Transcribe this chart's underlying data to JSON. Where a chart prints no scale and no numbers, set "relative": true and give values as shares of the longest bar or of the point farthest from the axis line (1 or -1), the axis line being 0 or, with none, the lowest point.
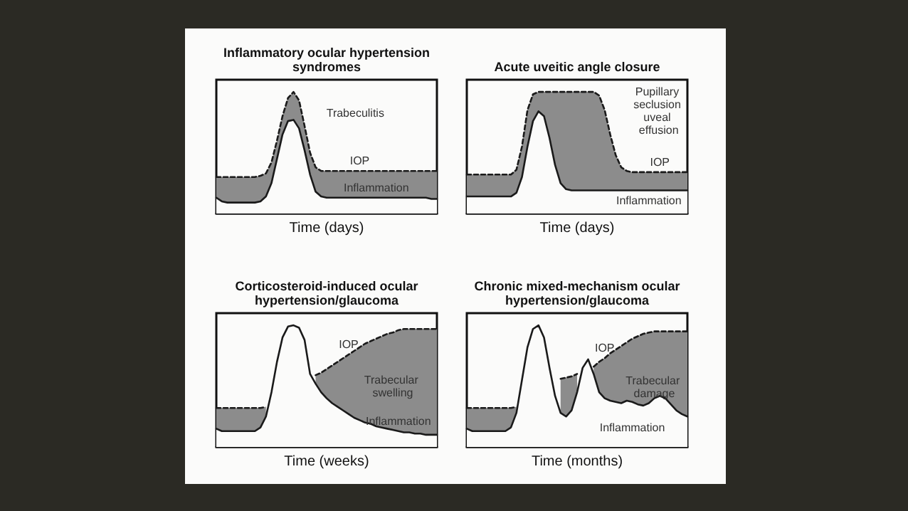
{
  "chart_data": [
    {
      "type": "line",
      "title": "Inflammatory ocular hypertension syndromes",
      "xlabel": "Time (days)",
      "relative": true,
      "legend": false,
      "grid": false,
      "marker": "none",
      "annotations": [
        "Trabeculitis"
      ],
      "categories": [
        null,
        null,
        null,
        null,
        null,
        null,
        null,
        null,
        null,
        null,
        null,
        null,
        null,
        null,
        null,
        null,
        null,
        null,
        null,
        null,
        null,
        null,
        null,
        null,
        null,
        null,
        null,
        null,
        null,
        null,
        null,
        null,
        null,
        null,
        null,
        null,
        null,
        null,
        null,
        null,
        null
      ],
      "series": [
        {
          "name": "IOP",
          "type": "area",
          "color": "#8c8c8c",
          "line_style": "dashed",
          "values": [
            0.3,
            0.3,
            0.3,
            0.3,
            0.3,
            0.3,
            0.3,
            0.3,
            0.31,
            0.33,
            0.42,
            0.6,
            0.8,
            0.95,
            1.0,
            0.93,
            0.72,
            0.5,
            0.38,
            0.35,
            0.35,
            0.35,
            0.35,
            0.35,
            0.35,
            0.35,
            0.35,
            0.35,
            0.35,
            0.35,
            0.35,
            0.35,
            0.35,
            0.35,
            0.35,
            0.35,
            0.35,
            0.35,
            0.35,
            0.35,
            0.35
          ]
        },
        {
          "name": "Inflammation",
          "type": "area",
          "color": "#fbfbfa",
          "line_style": "solid",
          "values": [
            0.13,
            0.1,
            0.09,
            0.09,
            0.09,
            0.09,
            0.09,
            0.09,
            0.1,
            0.14,
            0.25,
            0.45,
            0.65,
            0.76,
            0.77,
            0.7,
            0.52,
            0.32,
            0.18,
            0.14,
            0.13,
            0.13,
            0.13,
            0.13,
            0.13,
            0.13,
            0.13,
            0.13,
            0.13,
            0.13,
            0.13,
            0.13,
            0.13,
            0.13,
            0.13,
            0.13,
            0.13,
            0.13,
            0.13,
            0.12,
            0.12
          ]
        }
      ]
    },
    {
      "type": "line",
      "title": "Acute uveitic angle closure",
      "xlabel": "Time (days)",
      "relative": true,
      "legend": false,
      "grid": false,
      "marker": "none",
      "annotations": [
        "Pupillary seclusion uveal effusion"
      ],
      "categories": [
        null,
        null,
        null,
        null,
        null,
        null,
        null,
        null,
        null,
        null,
        null,
        null,
        null,
        null,
        null,
        null,
        null,
        null,
        null,
        null,
        null,
        null,
        null,
        null,
        null,
        null,
        null,
        null,
        null,
        null,
        null,
        null,
        null,
        null,
        null,
        null,
        null,
        null,
        null,
        null,
        null
      ],
      "series": [
        {
          "name": "IOP",
          "type": "area",
          "color": "#8c8c8c",
          "line_style": "dashed",
          "values": [
            0.32,
            0.32,
            0.32,
            0.32,
            0.32,
            0.32,
            0.32,
            0.32,
            0.32,
            0.36,
            0.55,
            0.85,
            0.98,
            1.0,
            1.0,
            1.0,
            1.0,
            1.0,
            1.0,
            1.0,
            1.0,
            1.0,
            1.0,
            1.0,
            0.97,
            0.85,
            0.65,
            0.48,
            0.38,
            0.35,
            0.34,
            0.34,
            0.34,
            0.34,
            0.34,
            0.34,
            0.34,
            0.34,
            0.34,
            0.34,
            0.34
          ]
        },
        {
          "name": "Inflammation",
          "type": "area",
          "color": "#fbfbfa",
          "line_style": "solid",
          "values": [
            0.14,
            0.14,
            0.14,
            0.14,
            0.14,
            0.14,
            0.14,
            0.14,
            0.14,
            0.17,
            0.3,
            0.55,
            0.76,
            0.84,
            0.8,
            0.62,
            0.4,
            0.25,
            0.2,
            0.19,
            0.19,
            0.19,
            0.19,
            0.19,
            0.19,
            0.19,
            0.19,
            0.19,
            0.19,
            0.19,
            0.19,
            0.19,
            0.19,
            0.19,
            0.19,
            0.19,
            0.19,
            0.19,
            0.19,
            0.19,
            0.19
          ]
        }
      ]
    },
    {
      "type": "line",
      "title": "Corticosteroid-induced ocular hypertension/glaucoma",
      "xlabel": "Time (weeks)",
      "relative": true,
      "legend": false,
      "grid": false,
      "marker": "none",
      "annotations": [
        "Trabecular swelling"
      ],
      "categories": [
        null,
        null,
        null,
        null,
        null,
        null,
        null,
        null,
        null,
        null,
        null,
        null,
        null,
        null,
        null,
        null,
        null,
        null,
        null,
        null,
        null,
        null,
        null,
        null,
        null,
        null,
        null,
        null,
        null,
        null,
        null,
        null,
        null,
        null,
        null,
        null,
        null,
        null,
        null,
        null,
        null
      ],
      "series": [
        {
          "name": "IOP",
          "type": "area",
          "color": "#8c8c8c",
          "line_style": "dashed",
          "values": [
            0.32,
            0.32,
            0.32,
            0.32,
            0.32,
            0.32,
            0.32,
            0.32,
            0.32,
            0.33,
            null,
            null,
            null,
            null,
            null,
            null,
            null,
            null,
            0.59,
            0.61,
            0.64,
            0.67,
            0.7,
            0.73,
            0.76,
            0.79,
            0.82,
            0.85,
            0.87,
            0.89,
            0.91,
            0.93,
            0.94,
            0.96,
            0.97,
            0.97,
            0.97,
            0.97,
            0.97,
            0.97,
            0.97
          ]
        },
        {
          "name": "Inflammation",
          "type": "area",
          "color": "#fbfbfa",
          "line_style": "solid",
          "values": [
            0.15,
            0.13,
            0.13,
            0.13,
            0.13,
            0.13,
            0.13,
            0.13,
            0.16,
            0.25,
            0.45,
            0.7,
            0.9,
            0.99,
            1.0,
            0.98,
            0.88,
            0.6,
            0.52,
            0.45,
            0.4,
            0.36,
            0.33,
            0.3,
            0.27,
            0.24,
            0.22,
            0.2,
            0.19,
            0.17,
            0.16,
            0.15,
            0.14,
            0.13,
            0.12,
            0.12,
            0.11,
            0.11,
            0.1,
            0.1,
            0.1
          ]
        }
      ]
    },
    {
      "type": "line",
      "title": "Chronic mixed-mechanism ocular hypertension/glaucoma",
      "xlabel": "Time (months)",
      "relative": true,
      "legend": false,
      "grid": false,
      "marker": "none",
      "annotations": [
        "Trabecular damage"
      ],
      "categories": [
        null,
        null,
        null,
        null,
        null,
        null,
        null,
        null,
        null,
        null,
        null,
        null,
        null,
        null,
        null,
        null,
        null,
        null,
        null,
        null,
        null,
        null,
        null,
        null,
        null,
        null,
        null,
        null,
        null,
        null,
        null,
        null,
        null,
        null,
        null,
        null,
        null,
        null,
        null,
        null,
        null
      ],
      "series": [
        {
          "name": "IOP",
          "type": "area",
          "color": "#8c8c8c",
          "line_style": "dashed",
          "values": [
            0.32,
            0.32,
            0.32,
            0.32,
            0.32,
            0.32,
            0.32,
            0.32,
            0.32,
            0.33,
            null,
            null,
            null,
            null,
            null,
            null,
            null,
            0.56,
            0.57,
            0.58,
            0.6,
            null,
            null,
            0.66,
            0.7,
            0.73,
            0.77,
            0.8,
            0.83,
            0.86,
            0.89,
            0.91,
            0.93,
            0.94,
            0.95,
            0.95,
            0.95,
            0.95,
            0.95,
            0.95,
            0.95
          ]
        },
        {
          "name": "Inflammation",
          "type": "area",
          "color": "#fbfbfa",
          "line_style": "solid",
          "values": [
            0.15,
            0.13,
            0.13,
            0.13,
            0.13,
            0.13,
            0.13,
            0.13,
            0.16,
            0.28,
            0.55,
            0.82,
            0.97,
            1.0,
            0.9,
            0.65,
            0.42,
            0.28,
            0.25,
            0.3,
            0.45,
            0.65,
            0.72,
            0.6,
            0.45,
            0.4,
            0.38,
            0.37,
            0.36,
            0.38,
            0.37,
            0.35,
            0.34,
            0.36,
            0.4,
            0.42,
            0.4,
            0.35,
            0.3,
            0.27,
            0.25
          ]
        }
      ]
    }
  ]
}
